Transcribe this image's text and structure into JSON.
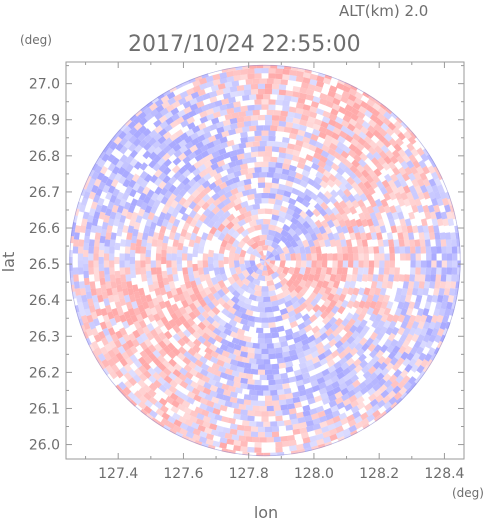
{
  "header": {
    "altitude": "ALT(km) 2.0",
    "timestamp": "2017/10/24 22:55:00"
  },
  "chart_data": {
    "type": "heatmap",
    "xlabel": "lon",
    "ylabel": "lat",
    "x_unit": "(deg)",
    "y_unit": "(deg)",
    "xlim": [
      127.24,
      128.46
    ],
    "ylim": [
      25.96,
      27.06
    ],
    "x_ticks": [
      127.4,
      127.6,
      127.8,
      128.0,
      128.2,
      128.4
    ],
    "x_tick_labels": [
      "127.4",
      "127.6",
      "127.8",
      "128.0",
      "128.2",
      "128.4"
    ],
    "y_ticks": [
      26.0,
      26.1,
      26.2,
      26.3,
      26.4,
      26.5,
      26.6,
      26.7,
      26.8,
      26.9,
      27.0
    ],
    "y_tick_labels": [
      "26.0",
      "26.1",
      "26.2",
      "26.3",
      "26.4",
      "26.5",
      "26.6",
      "26.7",
      "26.8",
      "26.9",
      "27.0"
    ],
    "domain": {
      "shape": "circle",
      "center_lon": 127.85,
      "center_lat": 26.51,
      "radius_lon": 0.6
    },
    "colors": {
      "positive": "#ff9b9b",
      "negative": "#9b9bff",
      "neutral": "#ffffff",
      "axes": "#9a9a9a",
      "text": "#6e6e6e"
    }
  }
}
